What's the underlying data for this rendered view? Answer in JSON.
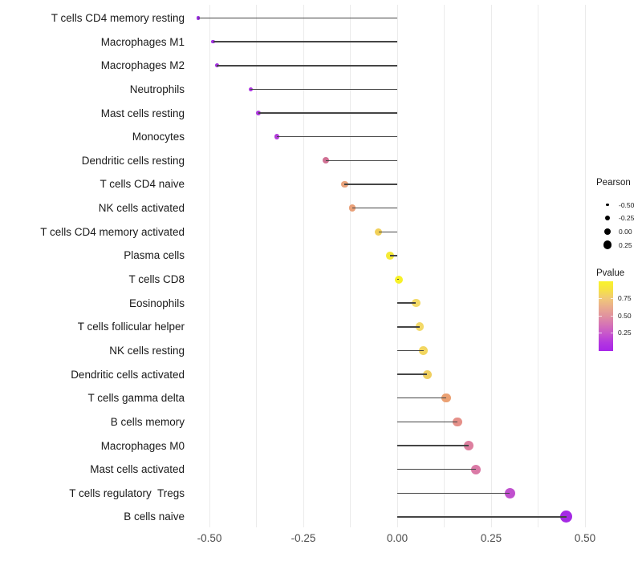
{
  "chart_data": {
    "type": "scatter",
    "subtype": "lollipop",
    "title": "",
    "xlabel": "",
    "ylabel": "",
    "x_ticks": [
      {
        "label": "-0.50",
        "value": -0.5
      },
      {
        "label": "-0.25",
        "value": -0.25
      },
      {
        "label": "0.00",
        "value": 0.0
      },
      {
        "label": "0.25",
        "value": 0.25
      },
      {
        "label": "0.50",
        "value": 0.5
      }
    ],
    "xlim": [
      -0.585,
      0.525
    ],
    "grid": "vertical only, major and minor every 0.125",
    "points": [
      {
        "label": "T cells CD4 memory resting",
        "pearson": -0.53,
        "pvalue": 0.01,
        "color": "#9a2ce2"
      },
      {
        "label": "Macrophages M1",
        "pearson": -0.49,
        "pvalue": 0.02,
        "color": "#a231e2"
      },
      {
        "label": "Macrophages M2",
        "pearson": -0.48,
        "pvalue": 0.03,
        "color": "#a532e1"
      },
      {
        "label": "Neutrophils",
        "pearson": -0.39,
        "pvalue": 0.07,
        "color": "#ab36df"
      },
      {
        "label": "Mast cells resting",
        "pearson": -0.37,
        "pvalue": 0.08,
        "color": "#ae38de"
      },
      {
        "label": "Monocytes",
        "pearson": -0.32,
        "pvalue": 0.12,
        "color": "#b23cda"
      },
      {
        "label": "Dendritic cells resting",
        "pearson": -0.19,
        "pvalue": 0.4,
        "color": "#cf7093"
      },
      {
        "label": "T cells CD4 naive",
        "pearson": -0.14,
        "pvalue": 0.63,
        "color": "#eaa47c"
      },
      {
        "label": "NK cells activated",
        "pearson": -0.12,
        "pvalue": 0.6,
        "color": "#e9a078"
      },
      {
        "label": "T cells CD4 memory activated",
        "pearson": -0.05,
        "pvalue": 0.78,
        "color": "#f1d058"
      },
      {
        "label": "Plasma cells",
        "pearson": -0.02,
        "pvalue": 0.9,
        "color": "#f5ea36"
      },
      {
        "label": "T cells CD8",
        "pearson": 0.005,
        "pvalue": 0.95,
        "color": "#f7f128"
      },
      {
        "label": "Eosinophils",
        "pearson": 0.05,
        "pvalue": 0.8,
        "color": "#f3da68"
      },
      {
        "label": "T cells follicular helper",
        "pearson": 0.06,
        "pvalue": 0.8,
        "color": "#f3d968"
      },
      {
        "label": "NK cells resting",
        "pearson": 0.07,
        "pvalue": 0.78,
        "color": "#f2d660"
      },
      {
        "label": "Dendritic cells activated",
        "pearson": 0.08,
        "pvalue": 0.76,
        "color": "#f0cf60"
      },
      {
        "label": "T cells gamma delta",
        "pearson": 0.13,
        "pvalue": 0.62,
        "color": "#eba173"
      },
      {
        "label": "B cells memory",
        "pearson": 0.16,
        "pvalue": 0.52,
        "color": "#e59089"
      },
      {
        "label": "Macrophages M0",
        "pearson": 0.19,
        "pvalue": 0.45,
        "color": "#dd7f9f"
      },
      {
        "label": "Mast cells activated",
        "pearson": 0.21,
        "pvalue": 0.43,
        "color": "#da7aa6"
      },
      {
        "label": "T cells regulatory  Tregs",
        "pearson": 0.3,
        "pvalue": 0.2,
        "color": "#c050ce"
      },
      {
        "label": "B cells naive",
        "pearson": 0.45,
        "pvalue": 0.03,
        "color": "#a52ae4"
      }
    ],
    "legend_size": {
      "title": "Pearson",
      "entries": [
        {
          "label": "-0.50",
          "value": -0.5
        },
        {
          "label": "-0.25",
          "value": -0.25
        },
        {
          "label": "0.00",
          "value": 0.0
        },
        {
          "label": "0.25",
          "value": 0.25
        }
      ]
    },
    "legend_color": {
      "title": "Pvalue",
      "ticks": [
        {
          "label": "0.75",
          "pos": 0.247
        },
        {
          "label": "0.50",
          "pos": 0.494
        },
        {
          "label": "0.25",
          "pos": 0.741
        }
      ],
      "gradient_top_to_bottom": [
        "#f9f32a",
        "#f6e145",
        "#f0c779",
        "#e9ab8e",
        "#e0919f",
        "#d573b6",
        "#c756cb",
        "#b438df",
        "#a825e8"
      ]
    },
    "colors": {
      "segment": "#454545",
      "gridline": "#ebebeb",
      "axis_tick_text": "#4d4d4d",
      "category_text": "#1a1a1a",
      "legend_dot": "#000000"
    }
  }
}
